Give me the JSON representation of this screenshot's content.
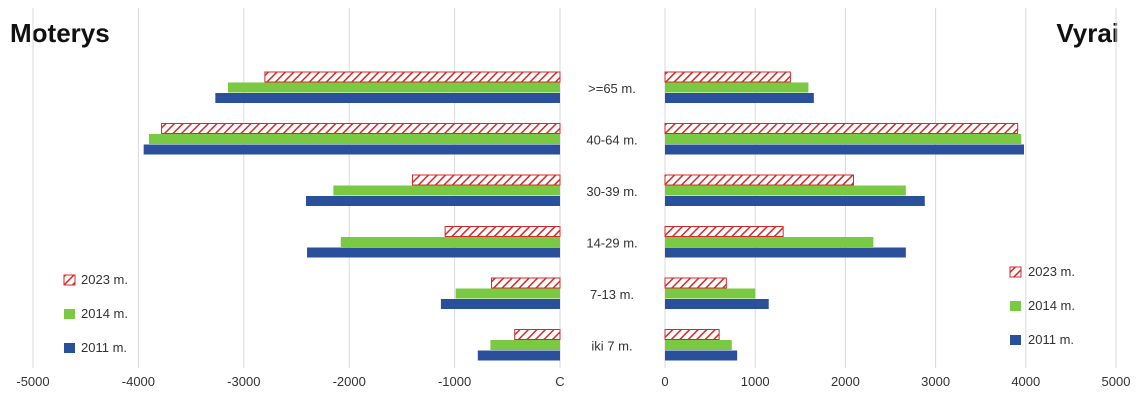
{
  "chart_data": [
    {
      "type": "bar",
      "orientation": "horizontal",
      "title": "Moterys",
      "reversed_axis": true,
      "categories": [
        ">=65 m.",
        "40-64 m.",
        "30-39 m.",
        "14-29 m.",
        "7-13 m.",
        "iki 7 m."
      ],
      "series": [
        {
          "name": "2023 m.",
          "values": [
            2800,
            3780,
            1400,
            1090,
            650,
            430
          ]
        },
        {
          "name": "2014 m.",
          "values": [
            3150,
            3900,
            2150,
            2080,
            990,
            660
          ]
        },
        {
          "name": "2011 m.",
          "values": [
            3270,
            3950,
            2410,
            2400,
            1130,
            780
          ]
        }
      ],
      "xlim": [
        -5000,
        0
      ],
      "ticks": [
        "-5000",
        "-4000",
        "-3000",
        "-2000",
        "-1000",
        "C"
      ],
      "grid": true,
      "legend_position": "bottom-left"
    },
    {
      "type": "bar",
      "orientation": "horizontal",
      "title": "Vyrai",
      "categories": [
        ">=65 m.",
        "40-64 m.",
        "30-39 m.",
        "14-29 m.",
        "7-13 m.",
        "iki 7 m."
      ],
      "series": [
        {
          "name": "2023 m.",
          "values": [
            1390,
            3910,
            2090,
            1310,
            680,
            600
          ]
        },
        {
          "name": "2014 m.",
          "values": [
            1590,
            3950,
            2670,
            2310,
            1000,
            740
          ]
        },
        {
          "name": "2011 m.",
          "values": [
            1650,
            3980,
            2880,
            2670,
            1150,
            800
          ]
        }
      ],
      "xlim": [
        0,
        5000
      ],
      "ticks": [
        "0",
        "1000",
        "2000",
        "3000",
        "4000",
        "5000"
      ],
      "grid": true,
      "legend_position": "bottom-right"
    }
  ],
  "colors": {
    "2023 m.": "#d42a2a",
    "2014 m.": "#7ac943",
    "2011 m.": "#2a4f9b",
    "grid": "#d9d9d9"
  }
}
